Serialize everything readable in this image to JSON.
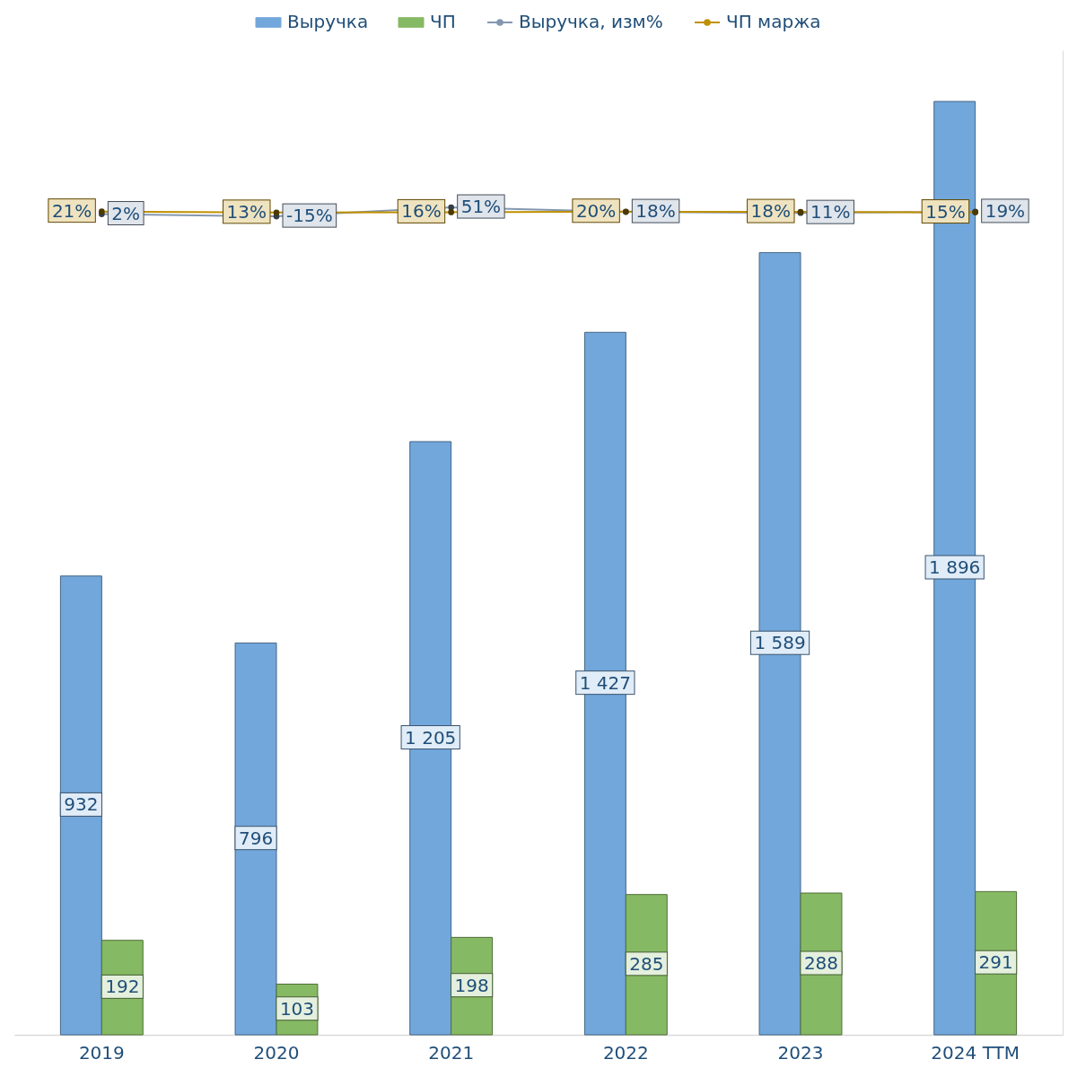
{
  "chart_data": {
    "type": "bar",
    "categories": [
      "2019",
      "2020",
      "2021",
      "2022",
      "2023",
      "2024 TTM"
    ],
    "series": [
      {
        "name": "Выручка",
        "color": "#72a7db",
        "values": [
          932,
          796,
          1205,
          1427,
          1589,
          1896
        ],
        "value_labels": [
          "932",
          "796",
          "1 205",
          "1 427",
          "1 589",
          "1 896"
        ]
      },
      {
        "name": "ЧП",
        "color": "#86b963",
        "values": [
          192,
          103,
          198,
          285,
          288,
          291
        ],
        "value_labels": [
          "192",
          "103",
          "198",
          "285",
          "288",
          "291"
        ]
      },
      {
        "name": "Выручка, изм%",
        "type": "line",
        "axis": "y2",
        "color": "#8497b0",
        "values": [
          2,
          -15,
          51,
          18,
          11,
          19
        ],
        "value_labels": [
          "2%",
          "-15%",
          "51%",
          "18%",
          "11%",
          "19%"
        ]
      },
      {
        "name": "ЧП маржа",
        "type": "line",
        "axis": "y2",
        "color": "#bf9000",
        "values": [
          21,
          13,
          16,
          20,
          18,
          15
        ],
        "value_labels": [
          "21%",
          "13%",
          "16%",
          "20%",
          "18%",
          "15%"
        ]
      }
    ],
    "y2lim": [
      -6000,
      1200
    ],
    "legend": "top",
    "tick_labels": "x",
    "marker": "circle"
  }
}
